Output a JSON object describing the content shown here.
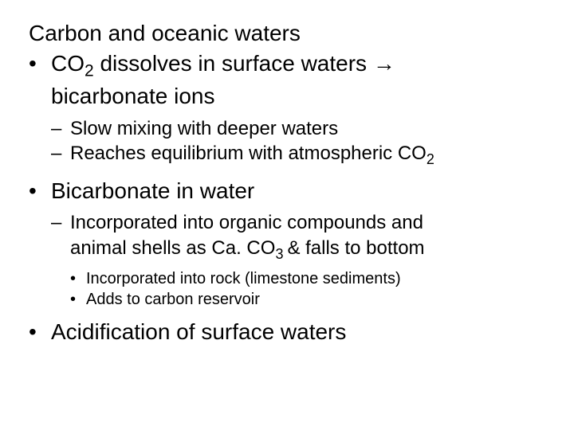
{
  "heading": "Carbon and oceanic waters",
  "items": [
    {
      "level": 1,
      "parts": [
        {
          "t": "CO"
        },
        {
          "t": "2",
          "sub": true
        },
        {
          "t": " dissolves in surface waters "
        },
        {
          "arrow": true
        }
      ],
      "cont": "bicarbonate ions",
      "children": [
        {
          "level": 2,
          "parts": [
            {
              "t": "Slow mixing with deeper waters"
            }
          ]
        },
        {
          "level": 2,
          "parts": [
            {
              "t": "Reaches equilibrium with atmospheric CO"
            },
            {
              "t": "2",
              "sub": true
            }
          ]
        }
      ]
    },
    {
      "level": 1,
      "parts": [
        {
          "t": "Bicarbonate in water"
        }
      ],
      "children": [
        {
          "level": 2,
          "parts": [
            {
              "t": "Incorporated into organic compounds and"
            }
          ],
          "cont_parts": [
            {
              "t": "animal shells as Ca. CO"
            },
            {
              "t": "3 ",
              "sub": true
            },
            {
              "t": "& falls to bottom"
            }
          ],
          "children": [
            {
              "level": 3,
              "parts": [
                {
                  "t": "Incorporated into rock (limestone sediments)"
                }
              ]
            },
            {
              "level": 3,
              "parts": [
                {
                  "t": "Adds to carbon reservoir"
                }
              ]
            }
          ]
        }
      ]
    },
    {
      "level": 1,
      "parts": [
        {
          "t": "Acidification of surface waters"
        }
      ]
    }
  ],
  "bullets": {
    "l1": "•",
    "l2": "–",
    "l3": "•"
  },
  "arrow_glyph": "→"
}
